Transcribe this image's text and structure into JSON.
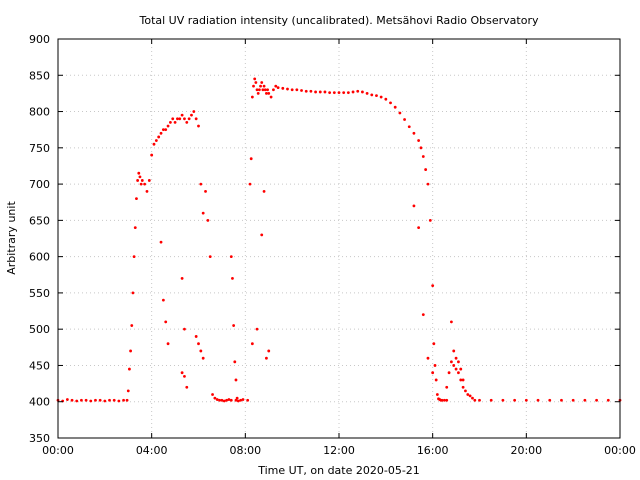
{
  "chart_data": {
    "type": "scatter",
    "title": "Total UV radiation intensity (uncalibrated). Metsähovi Radio Observatory",
    "xlabel": "Time UT, on date 2020-05-21",
    "ylabel": "Arbitrary unit",
    "xlim": [
      0,
      24
    ],
    "ylim": [
      350,
      900
    ],
    "grid": true,
    "legend": "none",
    "point_color": "#ff0000",
    "x_ticks": [
      {
        "value": 0,
        "label": "00:00"
      },
      {
        "value": 4,
        "label": "04:00"
      },
      {
        "value": 8,
        "label": "08:00"
      },
      {
        "value": 12,
        "label": "12:00"
      },
      {
        "value": 16,
        "label": "16:00"
      },
      {
        "value": 20,
        "label": "20:00"
      },
      {
        "value": 24,
        "label": "00:00"
      }
    ],
    "y_ticks": [
      350,
      400,
      450,
      500,
      550,
      600,
      650,
      700,
      750,
      800,
      850,
      900
    ],
    "series": [
      {
        "x": [
          0.0,
          0.2,
          0.4,
          0.6,
          0.8,
          1.0,
          1.2,
          1.4,
          1.6,
          1.8,
          2.0,
          2.2,
          2.4,
          2.6,
          2.8,
          2.95,
          3.0,
          3.05,
          3.1,
          3.15,
          3.2,
          3.25,
          3.3,
          3.35,
          3.4,
          3.45,
          3.5,
          3.55,
          3.6,
          3.7,
          3.8,
          3.9,
          4.0,
          4.1,
          4.2,
          4.3,
          4.4,
          4.5,
          4.6,
          4.7,
          4.8,
          4.9,
          5.0,
          5.1,
          5.2,
          5.3,
          5.4,
          5.5,
          5.6,
          5.7,
          5.8,
          5.9,
          6.0,
          4.4,
          4.5,
          4.6,
          4.7,
          5.3,
          5.4,
          5.5,
          5.9,
          6.0,
          6.1,
          6.2,
          6.3,
          6.4,
          6.5,
          5.3,
          5.4,
          6.1,
          6.2,
          6.6,
          6.7,
          6.8,
          6.9,
          7.0,
          7.1,
          7.2,
          7.3,
          7.4,
          7.6,
          7.7,
          7.8,
          7.9,
          7.4,
          7.45,
          7.5,
          7.55,
          7.6,
          7.65,
          8.1,
          8.2,
          8.25,
          8.3,
          8.35,
          8.4,
          8.45,
          8.5,
          8.55,
          8.6,
          8.65,
          8.7,
          8.75,
          8.8,
          8.85,
          8.9,
          8.95,
          9.0,
          9.1,
          9.2,
          9.3,
          8.3,
          8.5,
          8.7,
          8.8,
          8.9,
          9.0,
          9.4,
          9.6,
          9.8,
          10.0,
          10.2,
          10.4,
          10.6,
          10.8,
          11.0,
          11.2,
          11.4,
          11.6,
          11.8,
          12.0,
          12.2,
          12.4,
          12.6,
          12.8,
          13.0,
          13.2,
          13.4,
          13.6,
          13.8,
          14.0,
          14.2,
          14.4,
          14.6,
          14.8,
          15.0,
          15.2,
          15.4,
          15.5,
          15.6,
          15.7,
          15.8,
          15.9,
          16.0,
          16.05,
          16.1,
          16.15,
          16.2,
          16.25,
          16.3,
          16.35,
          16.4,
          16.5,
          16.6,
          15.2,
          15.4,
          15.6,
          15.8,
          16.0,
          16.6,
          16.7,
          16.8,
          16.9,
          17.0,
          17.1,
          17.2,
          17.3,
          17.4,
          17.5,
          17.6,
          17.7,
          16.8,
          16.9,
          17.0,
          17.1,
          17.2,
          17.3,
          17.8,
          18.0,
          18.5,
          19.0,
          19.5,
          20.0,
          20.5,
          21.0,
          21.5,
          22.0,
          22.5,
          23.0,
          23.5,
          24.0
        ],
        "y": [
          402,
          401,
          403,
          402,
          401,
          402,
          402,
          401,
          402,
          402,
          401,
          402,
          402,
          401,
          402,
          402,
          415,
          445,
          470,
          505,
          550,
          600,
          640,
          680,
          705,
          715,
          710,
          700,
          705,
          700,
          690,
          705,
          740,
          755,
          760,
          765,
          770,
          775,
          775,
          780,
          785,
          790,
          785,
          790,
          790,
          795,
          790,
          785,
          790,
          795,
          800,
          790,
          780,
          620,
          540,
          510,
          480,
          440,
          435,
          420,
          490,
          480,
          470,
          460,
          690,
          650,
          600,
          570,
          500,
          700,
          660,
          410,
          405,
          403,
          402,
          402,
          401,
          402,
          403,
          402,
          402,
          401,
          402,
          403,
          600,
          570,
          505,
          455,
          430,
          405,
          402,
          700,
          735,
          820,
          835,
          845,
          840,
          830,
          825,
          830,
          835,
          840,
          830,
          835,
          830,
          825,
          830,
          825,
          820,
          830,
          835,
          480,
          500,
          630,
          690,
          460,
          470,
          833,
          832,
          831,
          830,
          830,
          829,
          828,
          828,
          827,
          827,
          827,
          826,
          826,
          826,
          826,
          826,
          827,
          828,
          827,
          825,
          823,
          822,
          820,
          817,
          812,
          806,
          798,
          789,
          779,
          770,
          760,
          750,
          738,
          720,
          700,
          650,
          560,
          480,
          450,
          430,
          410,
          404,
          403,
          402,
          402,
          402,
          402,
          670,
          640,
          520,
          460,
          440,
          420,
          440,
          455,
          450,
          445,
          440,
          430,
          420,
          415,
          410,
          408,
          405,
          510,
          470,
          460,
          455,
          445,
          430,
          402,
          402,
          402,
          402,
          402,
          402,
          402,
          402,
          402,
          402,
          402,
          402,
          402,
          402
        ]
      }
    ]
  }
}
